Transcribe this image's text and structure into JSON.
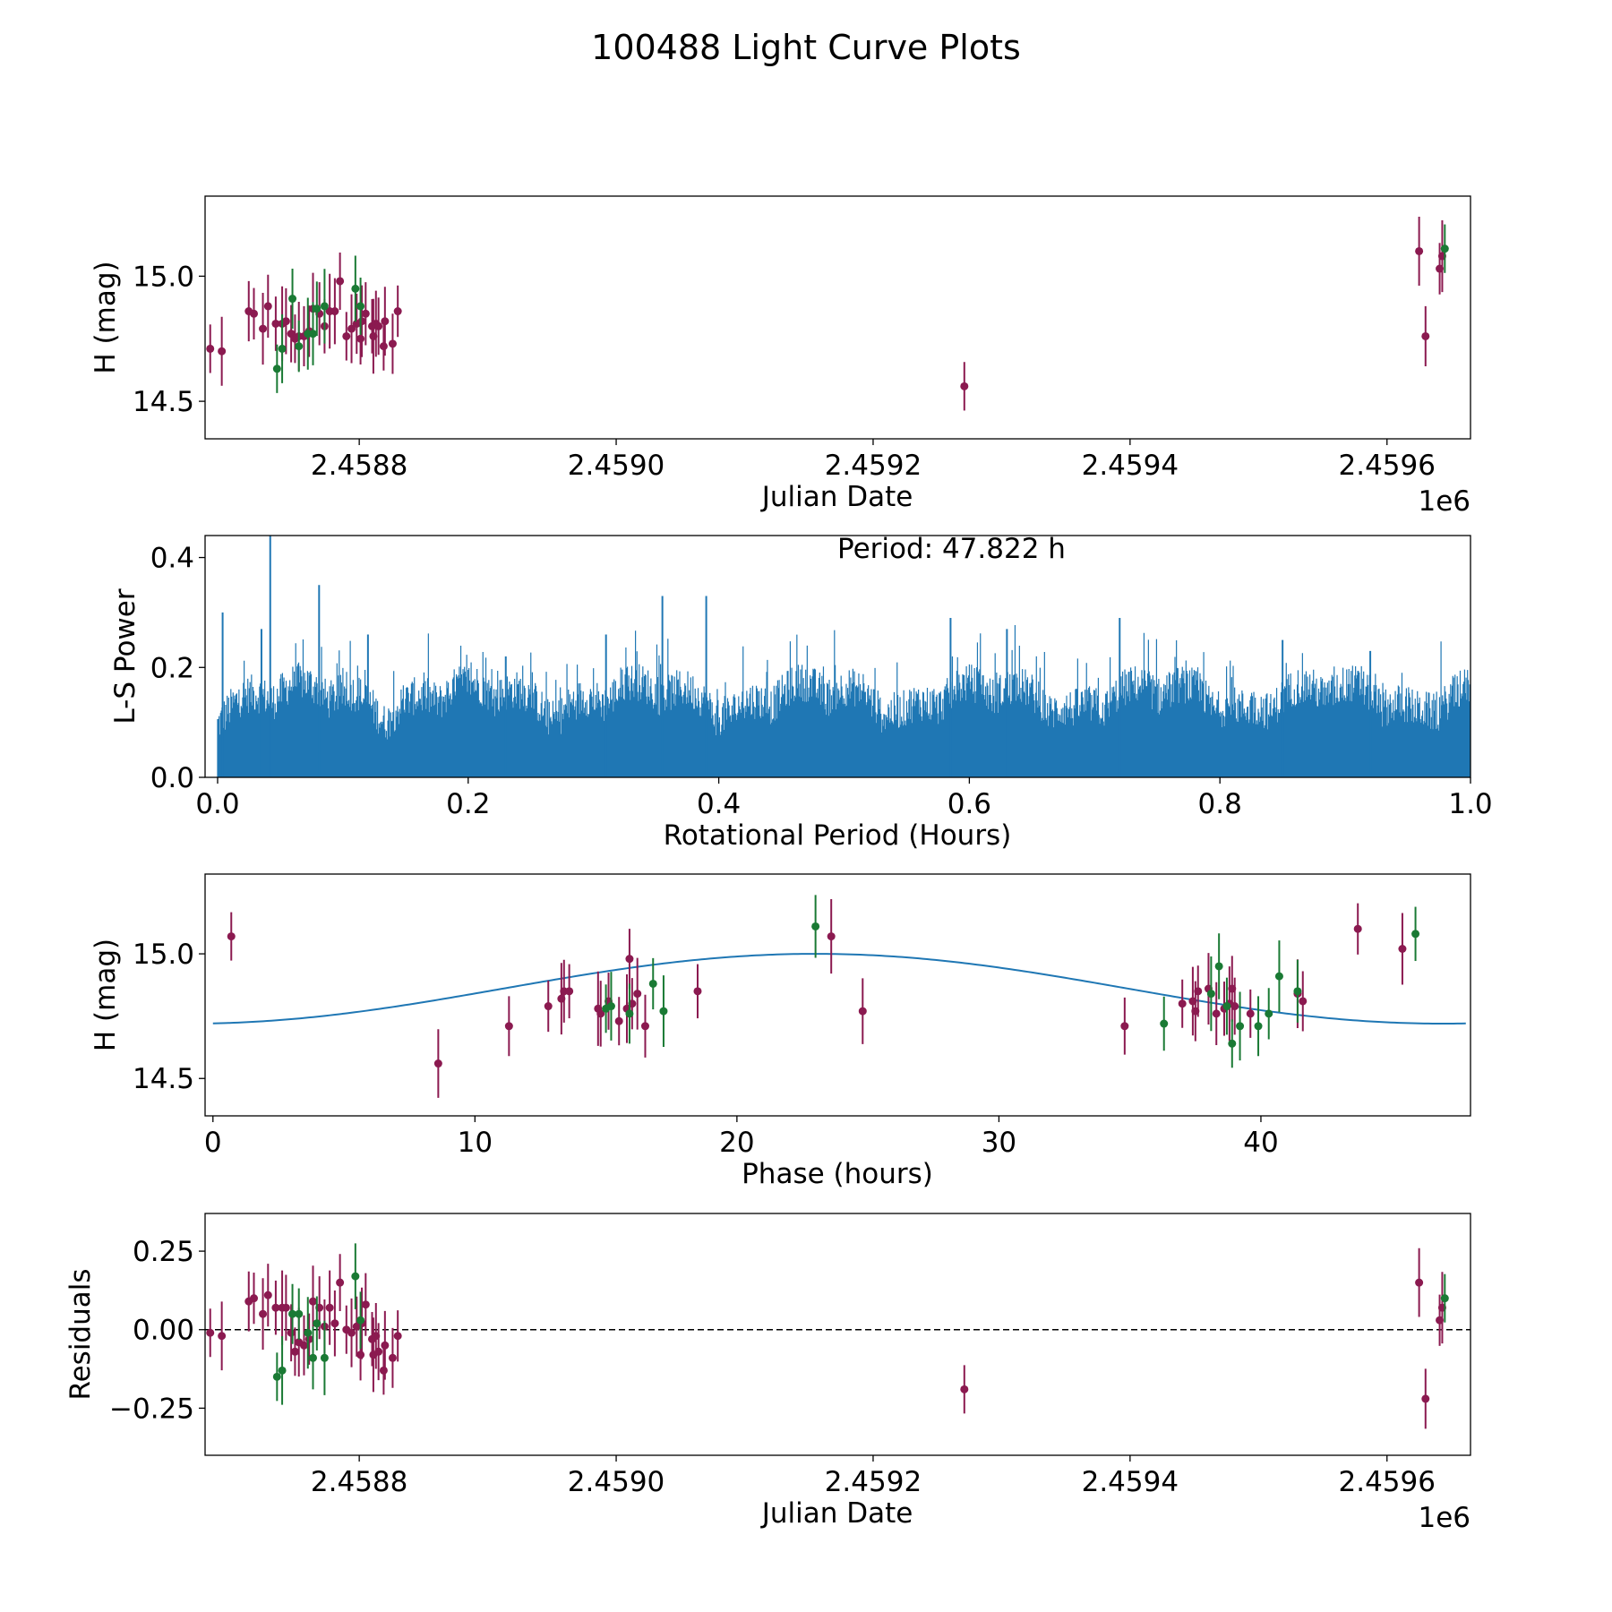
{
  "figure_title": "100488 Light Curve Plots",
  "colors": {
    "purple": "#8b1a50",
    "green": "#1a7a34",
    "blue": "#1f77b4",
    "text": "#000000"
  },
  "chart_data": [
    {
      "id": "lightcurve",
      "type": "scatter",
      "title": "",
      "xlabel": "Julian Date",
      "ylabel": "H (mag)",
      "offset_label": "1e6",
      "xlim": [
        2458680,
        2459665
      ],
      "ylim": [
        14.35,
        15.32
      ],
      "xticks": [
        2458800,
        2459000,
        2459200,
        2459400,
        2459600
      ],
      "xtick_labels": [
        "2.4588",
        "2.4590",
        "2.4592",
        "2.4594",
        "2.4596"
      ],
      "yticks": [
        14.5,
        15.0
      ],
      "ytick_labels": [
        "14.5",
        "15.0"
      ],
      "series": [
        {
          "name": "purple",
          "color": "#8b1a50",
          "x": [
            2458684,
            2458693,
            2458714,
            2458718,
            2458725,
            2458729,
            2458735,
            2458740,
            2458743,
            2458747,
            2458750,
            2458753,
            2458757,
            2458761,
            2458764,
            2458769,
            2458773,
            2458777,
            2458781,
            2458785,
            2458790,
            2458794,
            2458798,
            2458801,
            2458802,
            2458805,
            2458810,
            2458811,
            2458813,
            2458815,
            2458819,
            2458820,
            2458826,
            2458830
          ],
          "y": [
            14.71,
            14.7,
            14.86,
            14.85,
            14.79,
            14.88,
            14.81,
            14.81,
            14.82,
            14.77,
            14.75,
            14.76,
            14.76,
            14.78,
            14.87,
            14.85,
            14.8,
            14.86,
            14.86,
            14.98,
            14.76,
            14.79,
            14.81,
            14.75,
            14.82,
            14.85,
            14.8,
            14.76,
            14.81,
            14.8,
            14.72,
            14.82,
            14.73,
            14.86
          ]
        },
        {
          "name": "green",
          "color": "#1a7a34",
          "x": [
            2458736,
            2458740,
            2458748,
            2458753,
            2458760,
            2458764,
            2458767,
            2458773,
            2458797,
            2458801
          ],
          "y": [
            14.63,
            14.71,
            14.91,
            14.72,
            14.77,
            14.77,
            14.87,
            14.88,
            14.95,
            14.88
          ]
        },
        {
          "name": "purple-late",
          "color": "#8b1a50",
          "x": [
            2459271,
            2459625,
            2459630,
            2459641,
            2459643
          ],
          "y": [
            14.56,
            15.1,
            14.76,
            15.03,
            15.08
          ]
        },
        {
          "name": "green-late",
          "color": "#1a7a34",
          "x": [
            2459645
          ],
          "y": [
            15.11
          ]
        }
      ]
    },
    {
      "id": "periodogram",
      "type": "line",
      "title": "Period: 47.822 h",
      "xlabel": "Rotational Period (Hours)",
      "ylabel": "L-S Power",
      "xlim": [
        -0.01,
        1.0
      ],
      "ylim": [
        0,
        0.44
      ],
      "xticks": [
        0.0,
        0.2,
        0.4,
        0.6,
        0.8,
        1.0
      ],
      "xtick_labels": [
        "0.0",
        "0.2",
        "0.4",
        "0.6",
        "0.8",
        "1.0"
      ],
      "yticks": [
        0.0,
        0.2,
        0.4
      ],
      "ytick_labels": [
        "0.0",
        "0.2",
        "0.4"
      ],
      "color": "#1f77b4",
      "peaks": [
        {
          "x": 0.004,
          "y": 0.3
        },
        {
          "x": 0.042,
          "y": 0.44
        },
        {
          "x": 0.035,
          "y": 0.27
        },
        {
          "x": 0.081,
          "y": 0.35
        },
        {
          "x": 0.12,
          "y": 0.26
        },
        {
          "x": 0.23,
          "y": 0.22
        },
        {
          "x": 0.31,
          "y": 0.26
        },
        {
          "x": 0.355,
          "y": 0.33
        },
        {
          "x": 0.39,
          "y": 0.33
        },
        {
          "x": 0.585,
          "y": 0.29
        },
        {
          "x": 0.63,
          "y": 0.27
        },
        {
          "x": 0.72,
          "y": 0.29
        },
        {
          "x": 0.85,
          "y": 0.25
        },
        {
          "x": 0.92,
          "y": 0.23
        }
      ]
    },
    {
      "id": "phased",
      "type": "scatter",
      "title": "",
      "xlabel": "Phase (hours)",
      "ylabel": "H (mag)",
      "xlim": [
        -0.3,
        48.0
      ],
      "ylim": [
        14.35,
        15.32
      ],
      "xticks": [
        0,
        10,
        20,
        30,
        40
      ],
      "xtick_labels": [
        "0",
        "10",
        "20",
        "30",
        "40"
      ],
      "yticks": [
        14.5,
        15.0
      ],
      "ytick_labels": [
        "14.5",
        "15.0"
      ],
      "model": {
        "period_hours": 47.822,
        "offset": 14.86,
        "amplitude": 0.14,
        "phase_peak_hours": 23.0
      },
      "series": [
        {
          "name": "purple",
          "color": "#8b1a50",
          "x": [
            0.7,
            8.6,
            11.3,
            12.8,
            13.3,
            13.4,
            13.6,
            14.7,
            14.8,
            15.1,
            15.5,
            15.8,
            15.9,
            16.0,
            16.2,
            16.5,
            18.5,
            23.6,
            24.8,
            34.8,
            37.0,
            37.4,
            37.5,
            37.6,
            38.0,
            38.3,
            38.6,
            38.8,
            38.9,
            39.0,
            39.6,
            41.4,
            41.6,
            43.7,
            45.4
          ],
          "y": [
            15.07,
            14.56,
            14.71,
            14.79,
            14.82,
            14.85,
            14.85,
            14.78,
            14.76,
            14.81,
            14.73,
            14.78,
            14.98,
            14.8,
            14.84,
            14.71,
            14.85,
            15.07,
            14.77,
            14.71,
            14.8,
            14.81,
            14.77,
            14.85,
            14.86,
            14.76,
            14.78,
            14.8,
            14.86,
            14.79,
            14.76,
            14.84,
            14.81,
            15.1,
            15.02
          ]
        },
        {
          "name": "green",
          "color": "#1a7a34",
          "x": [
            15.0,
            15.2,
            15.9,
            16.8,
            17.2,
            23.0,
            36.3,
            38.1,
            38.4,
            38.7,
            38.9,
            39.2,
            39.9,
            40.3,
            40.7,
            41.4,
            45.9
          ],
          "y": [
            14.78,
            14.79,
            14.76,
            14.88,
            14.77,
            15.11,
            14.72,
            14.84,
            14.95,
            14.79,
            14.64,
            14.71,
            14.71,
            14.76,
            14.91,
            14.85,
            15.08
          ]
        }
      ]
    },
    {
      "id": "residuals",
      "type": "scatter",
      "title": "",
      "xlabel": "Julian Date",
      "ylabel": "Residuals",
      "offset_label": "1e6",
      "xlim": [
        2458680,
        2459665
      ],
      "ylim": [
        -0.4,
        0.37
      ],
      "xticks": [
        2458800,
        2459000,
        2459200,
        2459400,
        2459600
      ],
      "xtick_labels": [
        "2.4588",
        "2.4590",
        "2.4592",
        "2.4594",
        "2.4596"
      ],
      "yticks": [
        0.25,
        0.0,
        -0.25
      ],
      "ytick_labels": [
        "0.25",
        "0.00",
        "−0.25"
      ],
      "reference_line": 0.0,
      "series": [
        {
          "name": "purple",
          "color": "#8b1a50",
          "x": [
            2458684,
            2458693,
            2458714,
            2458718,
            2458725,
            2458729,
            2458735,
            2458740,
            2458743,
            2458747,
            2458750,
            2458753,
            2458757,
            2458761,
            2458764,
            2458769,
            2458773,
            2458777,
            2458781,
            2458785,
            2458790,
            2458794,
            2458798,
            2458801,
            2458802,
            2458805,
            2458810,
            2458811,
            2458813,
            2458815,
            2458819,
            2458820,
            2458826,
            2458830
          ],
          "y": [
            -0.01,
            -0.02,
            0.09,
            0.1,
            0.05,
            0.11,
            0.07,
            0.07,
            0.07,
            -0.01,
            -0.07,
            -0.04,
            -0.05,
            -0.03,
            0.09,
            0.07,
            0.01,
            0.07,
            0.02,
            0.15,
            0.0,
            -0.01,
            0.01,
            -0.08,
            0.02,
            0.08,
            -0.03,
            -0.08,
            -0.02,
            -0.07,
            -0.13,
            -0.05,
            -0.09,
            -0.02
          ]
        },
        {
          "name": "green",
          "color": "#1a7a34",
          "x": [
            2458736,
            2458740,
            2458748,
            2458753,
            2458760,
            2458764,
            2458767,
            2458773,
            2458797,
            2458801
          ],
          "y": [
            -0.15,
            -0.13,
            0.05,
            0.05,
            -0.01,
            -0.09,
            0.02,
            -0.09,
            0.17,
            0.03
          ]
        },
        {
          "name": "purple-late",
          "color": "#8b1a50",
          "x": [
            2459271,
            2459625,
            2459630,
            2459641,
            2459643
          ],
          "y": [
            -0.19,
            0.15,
            -0.22,
            0.03,
            0.07
          ]
        },
        {
          "name": "green-late",
          "color": "#1a7a34",
          "x": [
            2459645
          ],
          "y": [
            0.1
          ]
        }
      ]
    }
  ]
}
